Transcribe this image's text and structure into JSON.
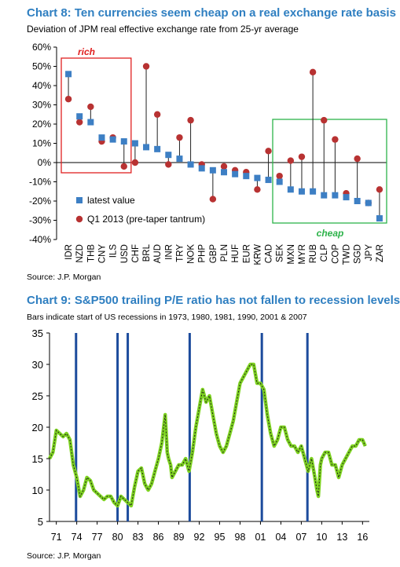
{
  "chart_data": [
    {
      "type": "scatter",
      "title": "Chart 8: Ten currencies seem cheap on a real exchange rate basis",
      "subtitle": "Deviation of JPM real effective exchange rate from 25-yr average",
      "source": "Source: J.P. Morgan",
      "y_ticks": [
        "60%",
        "50%",
        "40%",
        "30%",
        "20%",
        "10%",
        "0%",
        "-10%",
        "-20%",
        "-30%",
        "-40%"
      ],
      "ylim": [
        -40,
        60
      ],
      "categories": [
        "IDR",
        "NZD",
        "THB",
        "CNY",
        "ILS",
        "USD",
        "CHF",
        "BRL",
        "AUD",
        "INR",
        "TRY",
        "NOK",
        "PHP",
        "GBP",
        "PLN",
        "HUF",
        "EUR",
        "KRW",
        "CAD",
        "SEK",
        "MXN",
        "MYR",
        "RUB",
        "CLP",
        "COP",
        "TWD",
        "SGD",
        "JPY",
        "ZAR"
      ],
      "series": [
        {
          "name": "latest value",
          "marker": "square",
          "color": "#3d7fc4",
          "values": [
            46,
            24,
            21,
            13,
            12,
            11,
            10,
            8,
            7,
            4,
            2,
            -1,
            -3,
            -4,
            -5,
            -6,
            -7,
            -8,
            -9,
            -10,
            -14,
            -15,
            -15,
            -17,
            -17,
            -18,
            -20,
            -21,
            -29
          ]
        },
        {
          "name": "Q1 2013 (pre-taper tantrum)",
          "marker": "circle",
          "color": "#b83232",
          "values": [
            33,
            21,
            29,
            11,
            13,
            -2,
            0,
            50,
            25,
            -1,
            13,
            22,
            -1,
            -19,
            -2,
            -4,
            -5,
            -14,
            6,
            -7,
            1,
            3,
            47,
            22,
            12,
            -16,
            2,
            -21,
            -14
          ]
        }
      ],
      "annotations": [
        {
          "text": "rich",
          "color": "#e02020"
        },
        {
          "text": "cheap",
          "color": "#2db34a"
        }
      ]
    },
    {
      "type": "line",
      "title": "Chart 9: S&P500 trailing P/E ratio has not fallen to recession levels",
      "subtitle": "Bars indicate start of US recessions in 1973, 1980, 1981, 1990, 2001 & 2007",
      "source": "Source: J.P. Morgan",
      "ylim": [
        5,
        35
      ],
      "y_ticks": [
        "35",
        "30",
        "25",
        "20",
        "15",
        "10",
        "5"
      ],
      "xlim": [
        1970,
        2017
      ],
      "x_ticks": [
        "71",
        "74",
        "77",
        "80",
        "83",
        "86",
        "89",
        "92",
        "95",
        "98",
        "01",
        "04",
        "07",
        "10",
        "13",
        "16"
      ],
      "x_tick_years": [
        1971,
        1974,
        1977,
        1980,
        1983,
        1986,
        1989,
        1992,
        1995,
        1998,
        2001,
        2004,
        2007,
        2010,
        2013,
        2016
      ],
      "recession_years": [
        1973.9,
        1980.0,
        1981.5,
        1990.6,
        2001.2,
        2007.9
      ],
      "line_color": "#7ed321",
      "series": [
        {
          "x": [
            1970.0,
            1970.5,
            1971.0,
            1971.5,
            1972.0,
            1972.5,
            1973.0,
            1973.5,
            1974.0,
            1974.5,
            1975.0,
            1975.5,
            1976.0,
            1976.5,
            1977.0,
            1977.5,
            1978.0,
            1978.5,
            1979.0,
            1979.5,
            1980.0,
            1980.5,
            1981.0,
            1981.5,
            1982.0,
            1982.5,
            1983.0,
            1983.5,
            1984.0,
            1984.5,
            1985.0,
            1985.5,
            1986.0,
            1986.5,
            1987.0,
            1987.3,
            1987.5,
            1987.8,
            1988.0,
            1988.5,
            1989.0,
            1989.5,
            1990.0,
            1990.5,
            1991.0,
            1991.5,
            1992.0,
            1992.5,
            1993.0,
            1993.5,
            1994.0,
            1994.5,
            1995.0,
            1995.5,
            1996.0,
            1996.5,
            1997.0,
            1997.5,
            1998.0,
            1998.5,
            1999.0,
            1999.5,
            2000.0,
            2000.5,
            2001.0,
            2001.5,
            2002.0,
            2002.5,
            2003.0,
            2003.5,
            2004.0,
            2004.5,
            2005.0,
            2005.5,
            2006.0,
            2006.5,
            2007.0,
            2007.5,
            2008.0,
            2008.5,
            2009.0,
            2009.3,
            2009.5,
            2009.8,
            2010.0,
            2010.5,
            2011.0,
            2011.5,
            2012.0,
            2012.5,
            2013.0,
            2013.5,
            2014.0,
            2014.5,
            2015.0,
            2015.5,
            2016.0,
            2016.4
          ],
          "y": [
            15,
            16,
            19.5,
            19,
            18.5,
            19,
            18,
            14,
            12,
            9,
            10,
            12,
            11.5,
            10,
            9.5,
            9,
            8.5,
            9,
            9,
            8,
            7.5,
            9,
            8.5,
            8,
            7.5,
            10.5,
            13,
            13.5,
            11,
            10,
            11,
            13,
            15,
            17.5,
            22,
            16,
            15,
            14,
            12,
            13,
            14,
            14,
            15,
            13,
            16,
            20,
            23,
            26,
            24,
            25,
            22,
            19,
            17,
            16,
            17,
            19,
            21,
            24,
            27,
            28,
            29,
            30,
            30,
            27,
            27,
            26,
            22,
            19,
            17,
            18,
            20,
            20,
            18,
            17,
            17,
            16,
            17,
            15,
            13,
            15,
            12,
            10,
            9,
            14,
            15,
            16,
            16,
            14,
            14,
            12,
            14,
            15,
            16,
            17,
            17,
            18,
            18,
            17
          ]
        }
      ]
    }
  ]
}
